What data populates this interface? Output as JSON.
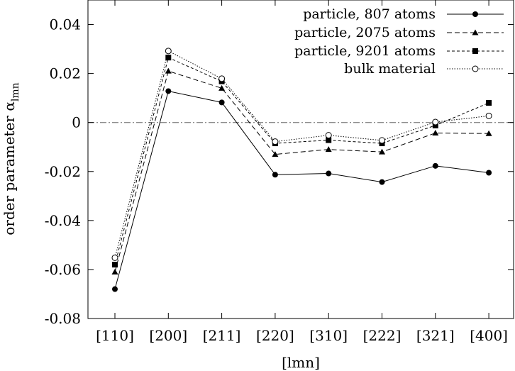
{
  "chart_data": {
    "type": "line",
    "title": "",
    "xlabel": "[lmn]",
    "ylabel": "order parameter α",
    "ylabel_subscript": "lmn",
    "categories": [
      "[110]",
      "[200]",
      "[211]",
      "[220]",
      "[310]",
      "[222]",
      "[321]",
      "[400]"
    ],
    "ylim": [
      -0.08,
      0.05
    ],
    "yticks": [
      -0.08,
      -0.06,
      -0.04,
      -0.02,
      0,
      0.02,
      0.04
    ],
    "ytick_labels": [
      "-0.08",
      "-0.06",
      "-0.04",
      "-0.02",
      "0",
      "0.02",
      "0.04"
    ],
    "zero_line": true,
    "legend_position": "top-right",
    "series": [
      {
        "name": "particle, 807 atoms",
        "marker": "circle-filled",
        "line": "solid",
        "values": [
          -0.068,
          0.0128,
          0.0082,
          -0.0213,
          -0.0208,
          -0.0243,
          -0.0177,
          -0.0205
        ]
      },
      {
        "name": "particle, 2075 atoms",
        "marker": "triangle-filled",
        "line": "dashed",
        "values": [
          -0.061,
          0.021,
          0.014,
          -0.013,
          -0.011,
          -0.012,
          -0.0043,
          -0.0045
        ]
      },
      {
        "name": "particle, 9201 atoms",
        "marker": "square-filled",
        "line": "short-dashed",
        "values": [
          -0.058,
          0.0265,
          0.0168,
          -0.0085,
          -0.0072,
          -0.0085,
          -0.0012,
          0.008
        ]
      },
      {
        "name": "bulk material",
        "marker": "circle-open",
        "line": "dotted",
        "values": [
          -0.0552,
          0.0292,
          0.0179,
          -0.0078,
          -0.0052,
          -0.0073,
          0.0002,
          0.0027
        ]
      }
    ]
  }
}
